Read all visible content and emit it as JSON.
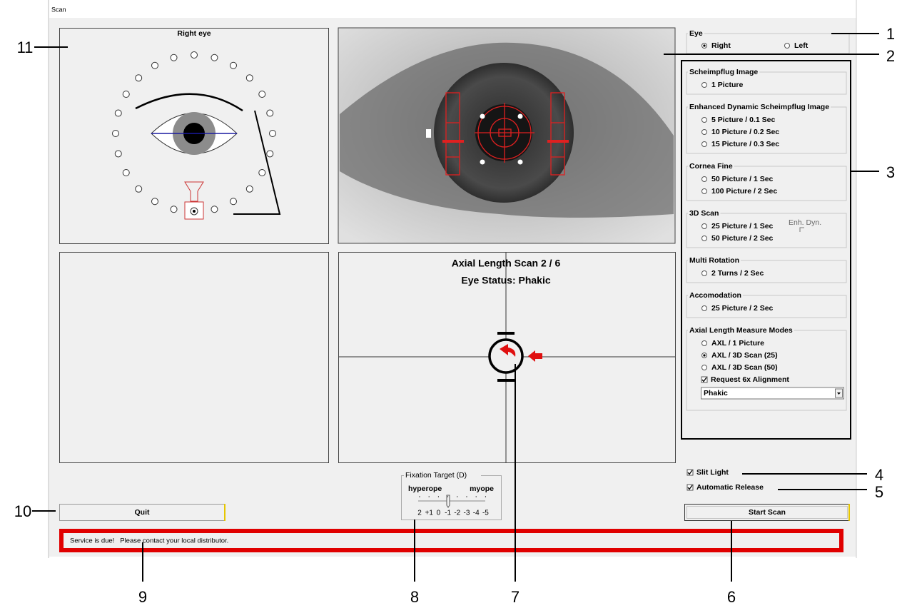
{
  "window_title": "Scan",
  "eye_view": {
    "title": "Right eye"
  },
  "eye_select": {
    "legend": "Eye",
    "options": [
      "Right",
      "Left"
    ],
    "selected": 0
  },
  "scan_modes": [
    {
      "legend": "Scheimpflug Image",
      "options": [
        "1 Picture"
      ]
    },
    {
      "legend": "Enhanced Dynamic Scheimpflug Image",
      "options": [
        "5 Picture / 0.1 Sec",
        "10 Picture / 0.2 Sec",
        "15 Picture / 0.3 Sec"
      ]
    },
    {
      "legend": "Cornea Fine",
      "options": [
        "50 Picture / 1 Sec",
        "100 Picture / 2 Sec"
      ]
    },
    {
      "legend": "3D Scan",
      "options": [
        "25 Picture / 1 Sec",
        "50 Picture / 2 Sec"
      ],
      "side_label": "Enh. Dyn."
    },
    {
      "legend": "Multi Rotation",
      "options": [
        "2 Turns / 2 Sec"
      ]
    },
    {
      "legend": "Accomodation",
      "options": [
        "25 Picture / 2 Sec"
      ]
    },
    {
      "legend": "Axial Length Measure Modes",
      "options": [
        "AXL / 1 Picture",
        "AXL / 3D Scan (25)",
        "AXL / 3D Scan (50)"
      ],
      "selected": 1,
      "checkbox": "Request 6x Alignment",
      "dropdown": "Phakic"
    }
  ],
  "status_panel": {
    "line1": "Axial Length Scan 2 / 6",
    "line2": "Eye Status: Phakic"
  },
  "toggles": [
    "Slit Light",
    "Automatic Release"
  ],
  "fixation": {
    "legend": "Fixation Target (D)",
    "left": "hyperope",
    "right": "myope",
    "scale": [
      "2",
      "+1",
      "0",
      "-1",
      "-2",
      "-3",
      "-4",
      "-5"
    ]
  },
  "buttons": {
    "quit": "Quit",
    "start": "Start Scan"
  },
  "message": "Service is due!   Please contact your local distributor.",
  "callouts": [
    "1",
    "2",
    "3",
    "4",
    "5",
    "6",
    "7",
    "8",
    "9",
    "10",
    "11"
  ]
}
